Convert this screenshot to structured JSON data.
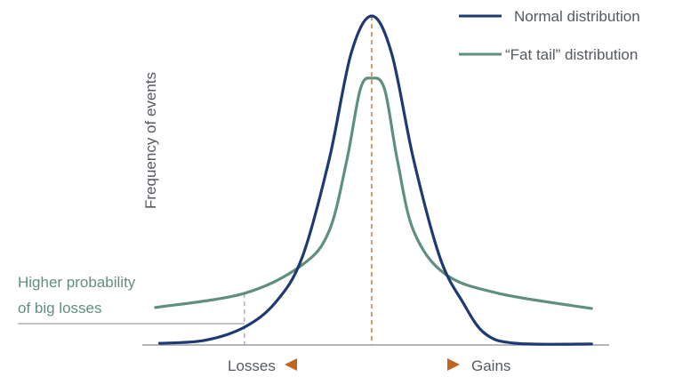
{
  "chart_data": {
    "type": "line",
    "title": "",
    "xlabel_left": "Losses",
    "xlabel_right": "Gains",
    "ylabel": "Frequency of events",
    "annotation": [
      "Higher probability",
      "of big losses"
    ],
    "legend_position": "top-right",
    "grid": false,
    "xlim": [
      -3.2,
      3.4
    ],
    "ylim": [
      0,
      100
    ],
    "mean_marker_x": 0,
    "tail_marker_x": -1.79,
    "series": [
      {
        "name": "Normal distribution",
        "color": "#1d3a72",
        "x": [
          -2.98,
          -2.35,
          -1.79,
          -1.35,
          -0.98,
          -0.6,
          -0.29,
          0,
          0.28,
          0.59,
          0.96,
          1.28,
          1.59,
          2.03,
          3.09
        ],
        "y": [
          0.5,
          1.4,
          5.4,
          13,
          26.5,
          56.2,
          88.6,
          100,
          88.6,
          56.2,
          26.5,
          13,
          3.5,
          0.5,
          0.3
        ]
      },
      {
        "name": "“Fat tail” distribution",
        "color": "#5f8f7d",
        "x": [
          -3.04,
          -1.79,
          -0.98,
          -0.6,
          -0.35,
          -0.16,
          0,
          0.18,
          0.36,
          0.59,
          1.03,
          1.78,
          3.09
        ],
        "y": [
          11.4,
          15.7,
          24.3,
          34.6,
          56.2,
          77.8,
          81.1,
          77.8,
          56.2,
          34.6,
          21.6,
          15.7,
          11.1
        ]
      }
    ],
    "colors": {
      "mean_line": "#c8783a",
      "arrow": "#c0661f",
      "axis": "#9aa0a6"
    }
  }
}
